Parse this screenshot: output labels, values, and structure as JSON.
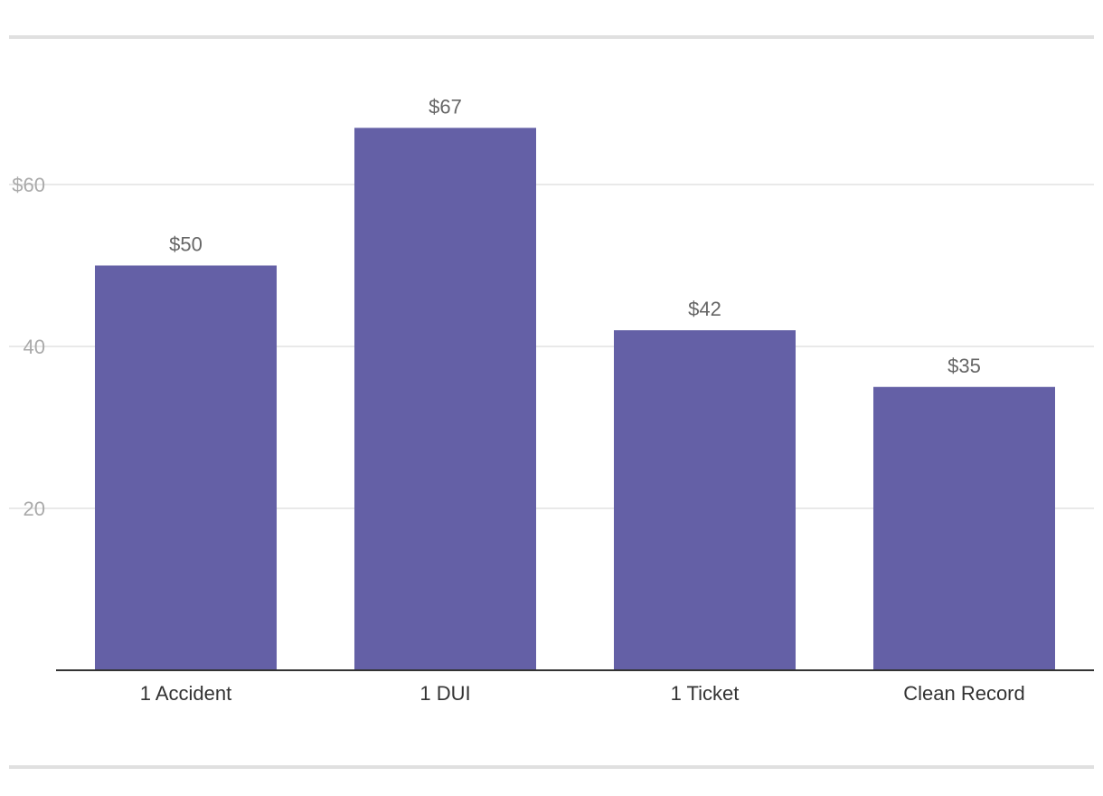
{
  "colors": {
    "bar": "#6460a6",
    "grid": "#e2e2e2",
    "axis": "#333333",
    "rule": "#e0e0e0"
  },
  "chart_data": {
    "type": "bar",
    "categories": [
      "1 Accident",
      "1 DUI",
      "1 Ticket",
      "Clean Record"
    ],
    "values": [
      50,
      67,
      42,
      35
    ],
    "data_labels": [
      "$50",
      "$67",
      "$42",
      "$35"
    ],
    "title": "",
    "xlabel": "",
    "ylabel": "",
    "ylim": [
      0,
      70
    ],
    "yticks": [
      20,
      40,
      60
    ],
    "ytick_labels": [
      "20",
      "40",
      "$60"
    ],
    "grid": true,
    "legend": "none"
  }
}
